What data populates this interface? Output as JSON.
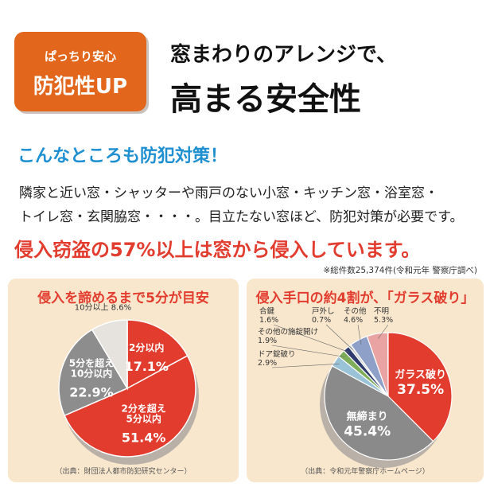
{
  "badge": {
    "line1": "ぱっちり安心",
    "line2": "防犯性UP"
  },
  "headline": {
    "line1": "窓まわりのアレンジで、",
    "line2": "高まる安全性"
  },
  "subheading": "こんなところも防犯対策！",
  "body": {
    "line1": "隣家と近い窓・シャッターや雨戸のない小窓・キッチン窓・浴室窓・",
    "line2": "トイレ窓・玄関脇窓・・・・。目立たない窓ほど、防犯対策が必要です。"
  },
  "alert": "侵入窃盗の57%以上は窓から侵入しています。",
  "note": "※総件数25,374件(令和元年 警察庁調べ)",
  "colors": {
    "orange": "#e2661b",
    "blue": "#1e8fd1",
    "red": "#e23c2f",
    "panel": "#f8e7cd"
  },
  "chart_data": [
    {
      "type": "pie",
      "title": "侵入を諦めるまで5分が目安",
      "source": "（出典：財団法人都市防犯研究センター）",
      "slices": [
        {
          "label": "2分以内",
          "value": 17.1,
          "value_text": "17.1%",
          "color": "#e23c2f"
        },
        {
          "label": "2分を超え\n5分以内",
          "value": 51.4,
          "value_text": "51.4%",
          "color": "#e23c2f"
        },
        {
          "label": "5分を超え\n10分以内",
          "value": 22.9,
          "value_text": "22.9%",
          "color": "#8d8d8d"
        },
        {
          "label": "10分以上",
          "value": 8.6,
          "value_text": "8.6%",
          "color": "#e6e2de"
        }
      ]
    },
    {
      "type": "pie",
      "title": "侵入手口の約4割が、「ガラス破り」",
      "source": "（出典：令和元年警察庁ホームページ）",
      "slices": [
        {
          "label": "ガラス破り",
          "value": 37.5,
          "value_text": "37.5%",
          "color": "#e23c2f"
        },
        {
          "label": "無締まり",
          "value": 45.4,
          "value_text": "45.4%",
          "color": "#8a8a8a"
        },
        {
          "label": "ドア錠破り",
          "value": 2.9,
          "value_text": "2.9%",
          "color": "#9bc3d8"
        },
        {
          "label": "その他の施錠開け",
          "value": 1.9,
          "value_text": "1.9%",
          "color": "#7fae5b"
        },
        {
          "label": "合鍵",
          "value": 1.6,
          "value_text": "1.6%",
          "color": "#2f3b6f"
        },
        {
          "label": "戸外し",
          "value": 0.7,
          "value_text": "0.7%",
          "color": "#cfcfcf"
        },
        {
          "label": "その他",
          "value": 4.6,
          "value_text": "4.6%",
          "color": "#8fa0c8"
        },
        {
          "label": "不明",
          "value": 5.3,
          "value_text": "5.3%",
          "color": "#e9a3a3"
        }
      ]
    }
  ]
}
